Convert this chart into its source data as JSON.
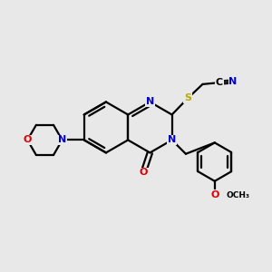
{
  "background_color": "#e8e8e8",
  "atom_colors": {
    "C": "#000000",
    "N": "#0000cc",
    "O": "#dd0000",
    "S": "#bbaa00",
    "H": "#000000"
  },
  "bond_color": "#000000",
  "bond_width": 1.6,
  "figsize": [
    3.0,
    3.0
  ],
  "dpi": 100,
  "xlim": [
    0,
    10
  ],
  "ylim": [
    0,
    10
  ]
}
